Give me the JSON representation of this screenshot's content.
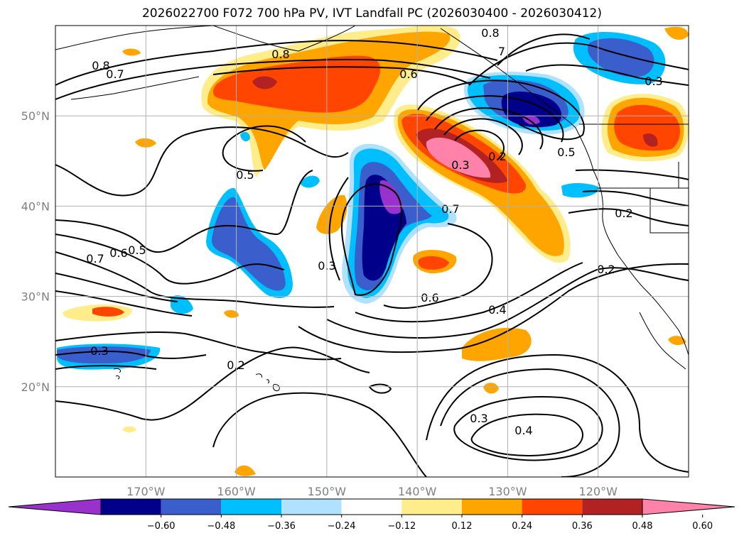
{
  "title": "2026022700 F072 700 hPa PV, IVT Landfall PC (2026030400 - 2026030412)",
  "map": {
    "lon_range": [
      -180,
      -110
    ],
    "lat_range": [
      10,
      60
    ],
    "lat_labels": [
      "50°N",
      "40°N",
      "30°N",
      "20°N"
    ],
    "lon_labels": [
      "170°W",
      "160°W",
      "150°W",
      "140°W",
      "130°W",
      "120°W"
    ],
    "gridlines": true
  },
  "contour_labels": [
    "0.8",
    "0.7",
    "0.8",
    "0.8",
    "7",
    "0.6",
    "0.3",
    "0.5",
    "0.3",
    "0.2",
    "0.5",
    "0.7",
    "0.2",
    "0.6",
    "0.5",
    "0.7",
    "0.3",
    "0.6",
    "0.4",
    "0.2",
    "0.3",
    "0.2",
    "0.3",
    "0.4"
  ],
  "colorbar": {
    "tick_labels": [
      "−0.60",
      "−0.48",
      "−0.36",
      "−0.24",
      "−0.12",
      "0.12",
      "0.24",
      "0.36",
      "0.48",
      "0.60"
    ],
    "colors": [
      "#9932cc",
      "#00008b",
      "#3a5fcd",
      "#00bfff",
      "#b0e2ff",
      "#ffffff",
      "#ffec8b",
      "#ffa500",
      "#ff4500",
      "#b22222",
      "#ff82ab"
    ],
    "extend": "both"
  }
}
